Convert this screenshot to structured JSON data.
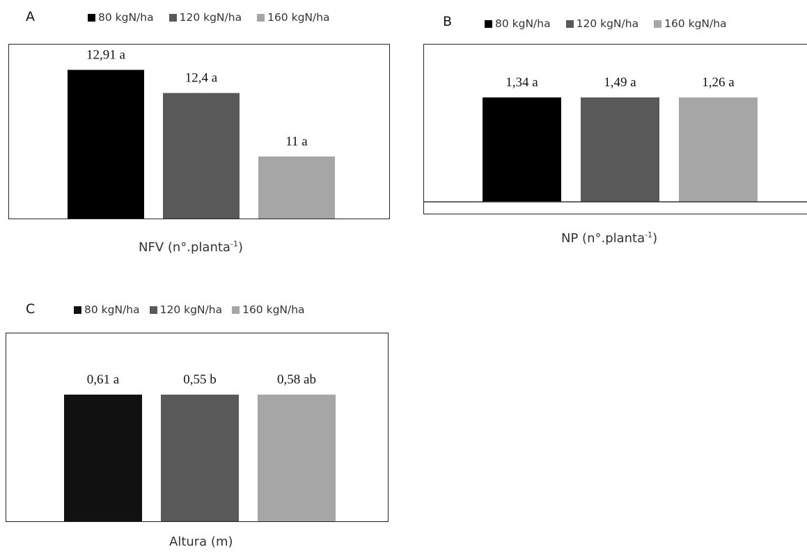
{
  "chart_data": [
    {
      "type": "bar",
      "panel_letter": "A",
      "xlabel_main": "NFV (n°.planta",
      "xlabel_sup": "-1",
      "xlabel_end": ")",
      "series": [
        {
          "name": "80 kgN/ha",
          "values": [
            12.91
          ],
          "label": "12,91 a",
          "color": "#000000"
        },
        {
          "name": "120 kgN/ha",
          "values": [
            12.4
          ],
          "label": "12,4 a",
          "color": "#595959"
        },
        {
          "name": "160 kgN/ha",
          "values": [
            11
          ],
          "label": "11 a",
          "color": "#a6a6a6"
        }
      ],
      "ylim": [
        9.6,
        13.3
      ],
      "grid": false,
      "legend_position": "top"
    },
    {
      "type": "bar",
      "panel_letter": "B",
      "xlabel_main": "NP (n°.planta",
      "xlabel_sup": "-1",
      "xlabel_end": ")",
      "series": [
        {
          "name": "80 kgN/ha",
          "values": [
            1.34
          ],
          "label": "1,34 a",
          "color": "#000000"
        },
        {
          "name": "120 kgN/ha",
          "values": [
            1.49
          ],
          "label": "1,49 a",
          "color": "#595959"
        },
        {
          "name": "160 kgN/ha",
          "values": [
            1.26
          ],
          "label": "1,26 a",
          "color": "#a6a6a6"
        }
      ],
      "grid": false,
      "legend_position": "top"
    },
    {
      "type": "bar",
      "panel_letter": "C",
      "xlabel_main": "Altura (m)",
      "series": [
        {
          "name": "80 kgN/ha",
          "values": [
            0.61
          ],
          "label": "0,61 a",
          "color": "#111111"
        },
        {
          "name": "120 kgN/ha",
          "values": [
            0.55
          ],
          "label": "0,55 b",
          "color": "#595959"
        },
        {
          "name": "160 kgN/ha",
          "values": [
            0.58
          ],
          "label": "0,58 ab",
          "color": "#a6a6a6"
        }
      ],
      "grid": false,
      "legend_position": "top"
    }
  ]
}
